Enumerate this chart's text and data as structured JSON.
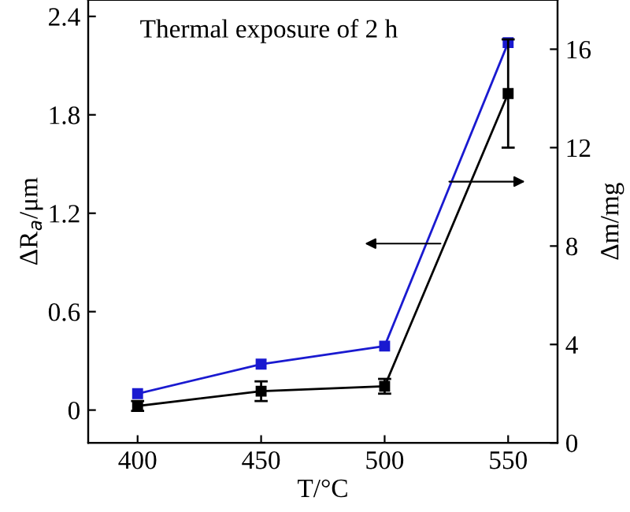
{
  "chart_data": {
    "type": "line",
    "xlabel": "T/°C",
    "ylabel": "ΔR$_{a}$/μm",
    "y2label": "Δm/mg",
    "annotations": [
      "Thermal exposure of 2 h"
    ],
    "x": [
      400,
      450,
      500,
      550
    ],
    "series": [
      {
        "color": "#1a1ad0",
        "values": [
          0.1,
          0.28,
          0.39,
          2.24
        ]
      },
      {
        "color": "#000000",
        "axis": "y2",
        "values": [
          1.5,
          2.1,
          2.3,
          14.2
        ],
        "errors": [
          0.2,
          0.4,
          0.3,
          [
            12.0,
            16.4
          ]
        ]
      }
    ],
    "xlim": [
      380,
      570
    ],
    "xticks": [
      400,
      450,
      500,
      550
    ],
    "ylim": [
      -0.2,
      2.5
    ],
    "yticks": [
      0,
      0.6,
      1.2,
      1.8,
      2.4
    ],
    "y2lim": [
      0,
      18
    ],
    "y2ticks": [
      0,
      4,
      8,
      12,
      16
    ],
    "marker": "square",
    "line_style": "solid",
    "grid": false,
    "legend": false
  }
}
